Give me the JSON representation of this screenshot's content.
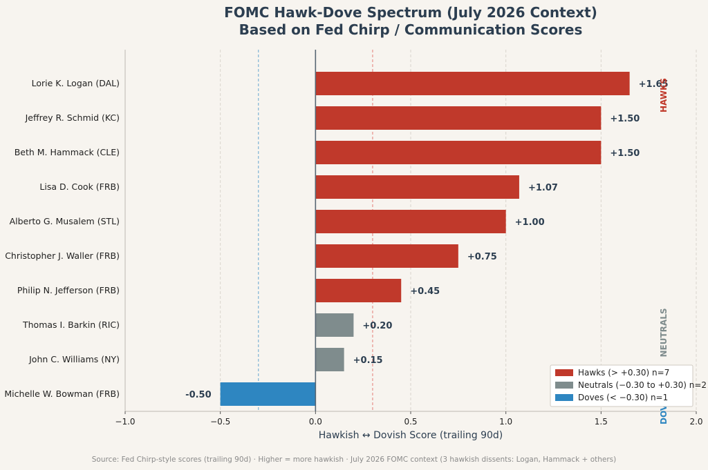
{
  "chart_data": {
    "type": "bar",
    "orientation": "horizontal",
    "title_lines": [
      "FOMC Hawk-Dove Spectrum (July 2026 Context)",
      "Based on Fed Chirp / Communication Scores"
    ],
    "xlabel": "Hawkish ↔ Dovish Score (trailing 90d)",
    "ylabel": "",
    "xlim": [
      -1.0,
      2.0
    ],
    "xticks": [
      -1.0,
      -0.5,
      0.0,
      0.5,
      1.0,
      1.5,
      2.0
    ],
    "xtick_labels": [
      "−1.0",
      "−0.5",
      "0.0",
      "0.5",
      "1.0",
      "1.5",
      "2.0"
    ],
    "grid": "vertical dashed",
    "threshold_lines": [
      {
        "value": -0.3,
        "color": "#7fb3d5"
      },
      {
        "value": 0.3,
        "color": "#e6908a"
      }
    ],
    "categories": [
      "Lorie K. Logan (DAL)",
      "Jeffrey R. Schmid (KC)",
      "Beth M. Hammack (CLE)",
      "Lisa D. Cook (FRB)",
      "Alberto G. Musalem (STL)",
      "Christopher J. Waller (FRB)",
      "Philip N. Jefferson (FRB)",
      "Thomas I. Barkin (RIC)",
      "John C. Williams (NY)",
      "Michelle W. Bowman (FRB)"
    ],
    "values": [
      1.65,
      1.5,
      1.5,
      1.07,
      1.0,
      0.75,
      0.45,
      0.2,
      0.15,
      -0.5
    ],
    "value_labels": [
      "+1.65",
      "+1.50",
      "+1.50",
      "+1.07",
      "+1.00",
      "+0.75",
      "+0.45",
      "+0.20",
      "+0.15",
      "-0.50"
    ],
    "groups": [
      "hawk",
      "hawk",
      "hawk",
      "hawk",
      "hawk",
      "hawk",
      "hawk",
      "neutral",
      "neutral",
      "dove"
    ],
    "group_colors": {
      "hawk": "#c0392b",
      "neutral": "#7f8c8d",
      "dove": "#2e86c1"
    },
    "side_labels": {
      "hawk": "HAWKS",
      "neutral": "NEUTRALS",
      "dove": "DOVES"
    },
    "legend": {
      "placement": "bottom-right",
      "entries": [
        {
          "group": "hawk",
          "label": "Hawks (> +0.30)  n=7"
        },
        {
          "group": "neutral",
          "label": "Neutrals (−0.30 to +0.30)  n=2"
        },
        {
          "group": "dove",
          "label": "Doves (< −0.30)  n=1"
        }
      ]
    },
    "footer": "Source: Fed Chirp-style scores (trailing 90d)  ·  Higher = more hawkish  ·  July 2026 FOMC context (3 hawkish dissents: Logan, Hammack + others)"
  }
}
